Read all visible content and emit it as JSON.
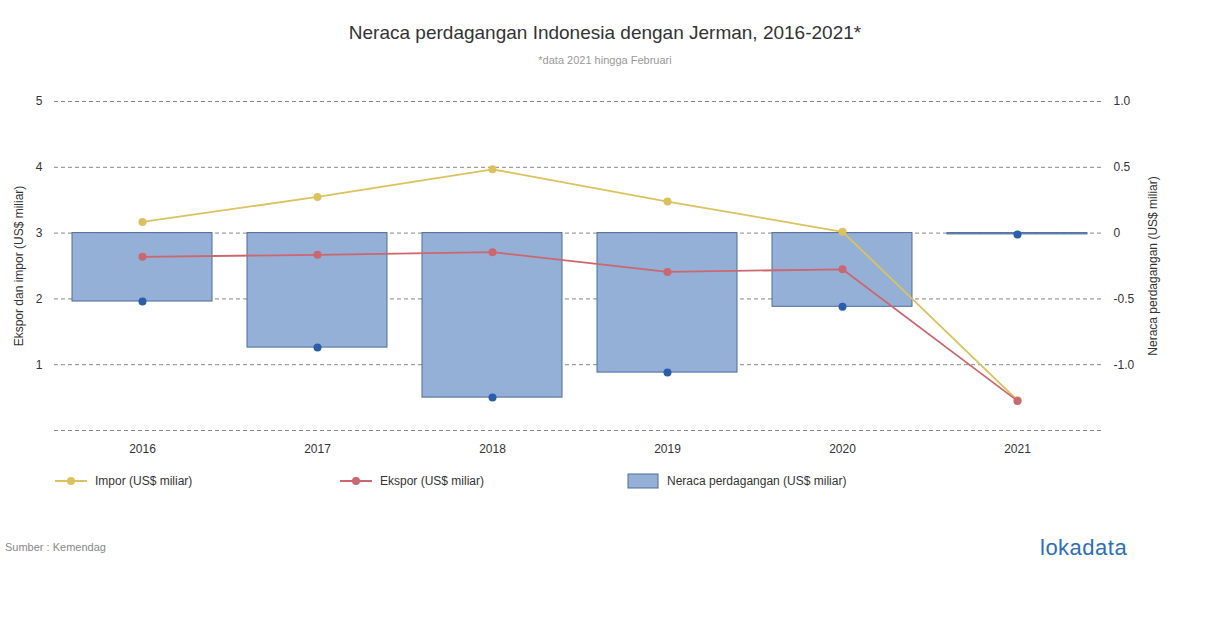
{
  "chart_data": {
    "type": "bar",
    "title": "Neraca perdagangan Indonesia dengan Jerman, 2016-2021*",
    "subtitle": "*data 2021 hingga Februari",
    "categories": [
      "2016",
      "2017",
      "2018",
      "2019",
      "2020",
      "2021"
    ],
    "series": [
      {
        "name": "Impor (US$ miliar)",
        "type": "line",
        "marker": "circle",
        "color": "#dcc25e",
        "values": [
          3.17,
          3.55,
          3.97,
          3.48,
          3.02,
          0.46
        ]
      },
      {
        "name": "Ekspor (US$ miliar)",
        "type": "line",
        "marker": "circle",
        "color": "#cc6670",
        "values": [
          2.64,
          2.67,
          2.71,
          2.41,
          2.45,
          0.45
        ]
      },
      {
        "name": "Neraca perdagangan (US$ miliar)",
        "type": "bar",
        "axis": "y2",
        "marker": "circle",
        "color": "#94b0d6",
        "values": [
          -0.52,
          -0.87,
          -1.25,
          -1.06,
          -0.56,
          -0.01
        ]
      }
    ],
    "y_label": "Ekspor dan impor (US$ miliar)",
    "y2_label": "Neraca perdagangan (US$ miliar)",
    "ylim": [
      0,
      5
    ],
    "yticks": [
      1,
      2,
      3,
      4,
      5
    ],
    "y2lim": [
      -1.5,
      1
    ],
    "y2ticks": [
      {
        "value": 1,
        "label": "1.0"
      },
      0.5,
      0,
      -0.5,
      {
        "value": -1,
        "label": "-1.0"
      }
    ],
    "grid": true,
    "legend": "bottom",
    "source": "Sumber : Kemendag",
    "brand": "lokadata"
  }
}
